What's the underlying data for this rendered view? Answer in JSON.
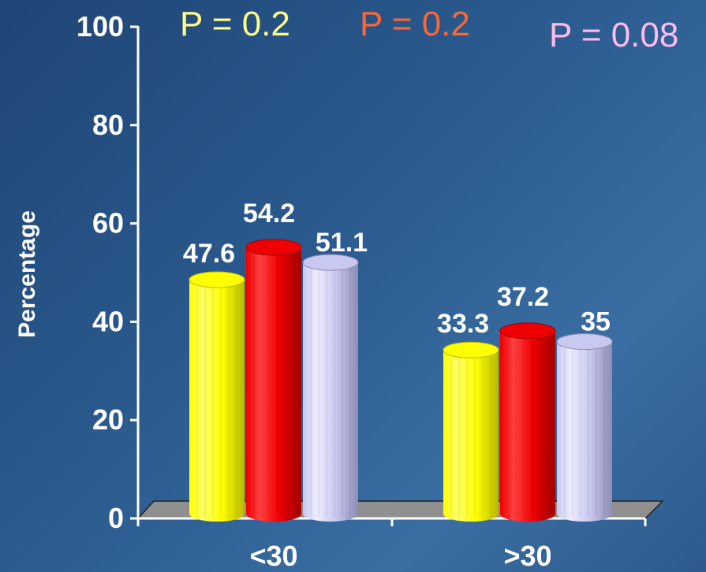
{
  "chart_data": {
    "type": "bar",
    "ylabel": "Percentage",
    "xlabel": "",
    "ylim": [
      0,
      100
    ],
    "yticks": [
      0,
      20,
      40,
      60,
      80,
      100
    ],
    "categories": [
      "<30",
      ">30"
    ],
    "series": [
      {
        "values": [
          47.6,
          33.3
        ],
        "color": "#ffff00"
      },
      {
        "values": [
          54.2,
          37.2
        ],
        "color": "#ff0000"
      },
      {
        "values": [
          51.1,
          35
        ],
        "color": "#c8c8f0"
      }
    ],
    "data_labels": [
      [
        "47.6",
        "33.3"
      ],
      [
        "54.2",
        "37.2"
      ],
      [
        "51.1",
        "35"
      ]
    ],
    "grid": false,
    "style": "3d-cylinder"
  },
  "pvalues": [
    {
      "text": "P = 0.2",
      "color": "#ffff88"
    },
    {
      "text": "P = 0.2",
      "color": "#ff6633"
    },
    {
      "text": "P = 0.08",
      "color": "#ffbbee"
    }
  ]
}
